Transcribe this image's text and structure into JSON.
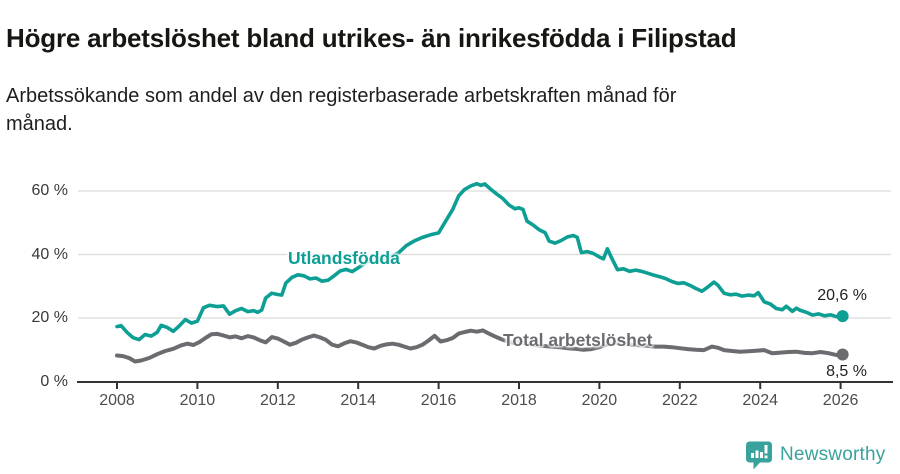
{
  "header": {
    "title": "Högre arbetslöshet bland utrikes- än inrikesfödda i Filipstad",
    "subtitle_line1": "Arbetssökande som andel av den registerbaserade arbetskraften månad för",
    "subtitle_line2": "månad."
  },
  "chart_data": {
    "type": "line",
    "title": "Högre arbetslöshet bland utrikes- än inrikesfödda i Filipstad",
    "subtitle": "Arbetssökande som andel av den registerbaserade arbetskraften månad för månad.",
    "xlabel": "",
    "ylabel": "",
    "xlim": [
      2007.2,
      2027.3
    ],
    "ylim": [
      0,
      65
    ],
    "grid": "horizontal",
    "x_ticks": [
      2008,
      2010,
      2012,
      2014,
      2016,
      2018,
      2020,
      2022,
      2024,
      2026
    ],
    "y_ticks": [
      {
        "value": 0,
        "label": "0 %"
      },
      {
        "value": 20,
        "label": "20 %"
      },
      {
        "value": 40,
        "label": "40 %"
      },
      {
        "value": 60,
        "label": "60 %"
      }
    ],
    "colors": {
      "grid": "#dcdcdc",
      "axis": "#333333",
      "tick_text": "#4d4d4d"
    },
    "series": [
      {
        "name": "Utlandsfödda",
        "color": "#0d9e94",
        "end_value": 20.6,
        "end_label": "20,6 %",
        "points": [
          [
            2008.0,
            17.3
          ],
          [
            2008.1,
            17.6
          ],
          [
            2008.25,
            15.5
          ],
          [
            2008.4,
            13.8
          ],
          [
            2008.55,
            13.2
          ],
          [
            2008.7,
            14.8
          ],
          [
            2008.85,
            14.3
          ],
          [
            2009.0,
            15.5
          ],
          [
            2009.1,
            17.7
          ],
          [
            2009.25,
            17.0
          ],
          [
            2009.4,
            15.8
          ],
          [
            2009.55,
            17.5
          ],
          [
            2009.7,
            19.5
          ],
          [
            2009.85,
            18.4
          ],
          [
            2010.0,
            19.0
          ],
          [
            2010.15,
            23.2
          ],
          [
            2010.3,
            24.0
          ],
          [
            2010.5,
            23.6
          ],
          [
            2010.65,
            23.8
          ],
          [
            2010.8,
            21.2
          ],
          [
            2010.95,
            22.3
          ],
          [
            2011.1,
            23.0
          ],
          [
            2011.25,
            22.0
          ],
          [
            2011.4,
            22.3
          ],
          [
            2011.5,
            21.8
          ],
          [
            2011.6,
            22.5
          ],
          [
            2011.7,
            26.3
          ],
          [
            2011.85,
            27.8
          ],
          [
            2012.0,
            27.4
          ],
          [
            2012.1,
            27.2
          ],
          [
            2012.2,
            31.0
          ],
          [
            2012.35,
            32.8
          ],
          [
            2012.5,
            33.6
          ],
          [
            2012.65,
            33.3
          ],
          [
            2012.8,
            32.3
          ],
          [
            2012.95,
            32.6
          ],
          [
            2013.1,
            31.6
          ],
          [
            2013.25,
            31.9
          ],
          [
            2013.4,
            33.3
          ],
          [
            2013.55,
            34.8
          ],
          [
            2013.7,
            35.3
          ],
          [
            2013.85,
            34.6
          ],
          [
            2014.0,
            35.8
          ],
          [
            2014.2,
            37.5
          ],
          [
            2014.4,
            38.6
          ],
          [
            2014.6,
            38.2
          ],
          [
            2014.8,
            39.4
          ],
          [
            2015.0,
            40.5
          ],
          [
            2015.2,
            42.8
          ],
          [
            2015.4,
            44.3
          ],
          [
            2015.6,
            45.4
          ],
          [
            2015.8,
            46.2
          ],
          [
            2016.0,
            46.8
          ],
          [
            2016.2,
            51.0
          ],
          [
            2016.35,
            54.2
          ],
          [
            2016.5,
            58.5
          ],
          [
            2016.65,
            60.5
          ],
          [
            2016.8,
            61.6
          ],
          [
            2016.95,
            62.3
          ],
          [
            2017.05,
            61.8
          ],
          [
            2017.15,
            62.2
          ],
          [
            2017.3,
            60.5
          ],
          [
            2017.45,
            59.0
          ],
          [
            2017.6,
            57.6
          ],
          [
            2017.75,
            55.6
          ],
          [
            2017.9,
            54.4
          ],
          [
            2018.0,
            54.7
          ],
          [
            2018.1,
            54.2
          ],
          [
            2018.2,
            50.5
          ],
          [
            2018.35,
            49.3
          ],
          [
            2018.5,
            47.8
          ],
          [
            2018.65,
            46.9
          ],
          [
            2018.75,
            44.2
          ],
          [
            2018.9,
            43.6
          ],
          [
            2019.05,
            44.4
          ],
          [
            2019.2,
            45.5
          ],
          [
            2019.35,
            46.0
          ],
          [
            2019.45,
            45.4
          ],
          [
            2019.55,
            40.6
          ],
          [
            2019.7,
            40.9
          ],
          [
            2019.85,
            40.3
          ],
          [
            2020.0,
            39.2
          ],
          [
            2020.1,
            38.6
          ],
          [
            2020.2,
            41.8
          ],
          [
            2020.3,
            39.0
          ],
          [
            2020.45,
            35.2
          ],
          [
            2020.6,
            35.5
          ],
          [
            2020.75,
            34.7
          ],
          [
            2020.9,
            35.1
          ],
          [
            2021.05,
            34.7
          ],
          [
            2021.2,
            34.1
          ],
          [
            2021.35,
            33.5
          ],
          [
            2021.5,
            33.0
          ],
          [
            2021.65,
            32.4
          ],
          [
            2021.8,
            31.5
          ],
          [
            2021.95,
            30.9
          ],
          [
            2022.1,
            31.1
          ],
          [
            2022.25,
            30.3
          ],
          [
            2022.4,
            29.3
          ],
          [
            2022.55,
            28.4
          ],
          [
            2022.7,
            29.8
          ],
          [
            2022.85,
            31.3
          ],
          [
            2022.95,
            30.3
          ],
          [
            2023.1,
            27.8
          ],
          [
            2023.25,
            27.3
          ],
          [
            2023.4,
            27.5
          ],
          [
            2023.55,
            26.9
          ],
          [
            2023.7,
            27.2
          ],
          [
            2023.85,
            27.0
          ],
          [
            2023.95,
            28.0
          ],
          [
            2024.1,
            25.1
          ],
          [
            2024.25,
            24.4
          ],
          [
            2024.4,
            23.0
          ],
          [
            2024.55,
            22.6
          ],
          [
            2024.65,
            23.7
          ],
          [
            2024.8,
            22.1
          ],
          [
            2024.9,
            23.1
          ],
          [
            2025.0,
            22.4
          ],
          [
            2025.15,
            21.8
          ],
          [
            2025.3,
            20.9
          ],
          [
            2025.45,
            21.3
          ],
          [
            2025.6,
            20.7
          ],
          [
            2025.75,
            21.0
          ],
          [
            2025.9,
            20.4
          ],
          [
            2026.05,
            20.6
          ]
        ]
      },
      {
        "name": "Total arbetslöshet",
        "color": "#6b6b70",
        "end_value": 8.5,
        "end_label": "8,5 %",
        "points": [
          [
            2008.0,
            8.2
          ],
          [
            2008.15,
            8.0
          ],
          [
            2008.3,
            7.4
          ],
          [
            2008.45,
            6.3
          ],
          [
            2008.6,
            6.6
          ],
          [
            2008.8,
            7.4
          ],
          [
            2009.0,
            8.6
          ],
          [
            2009.2,
            9.6
          ],
          [
            2009.4,
            10.3
          ],
          [
            2009.6,
            11.4
          ],
          [
            2009.75,
            11.9
          ],
          [
            2009.9,
            11.5
          ],
          [
            2010.05,
            12.4
          ],
          [
            2010.2,
            13.7
          ],
          [
            2010.35,
            14.9
          ],
          [
            2010.5,
            15.0
          ],
          [
            2010.65,
            14.5
          ],
          [
            2010.8,
            13.9
          ],
          [
            2010.95,
            14.2
          ],
          [
            2011.1,
            13.6
          ],
          [
            2011.25,
            14.3
          ],
          [
            2011.4,
            13.9
          ],
          [
            2011.55,
            13.0
          ],
          [
            2011.7,
            12.3
          ],
          [
            2011.85,
            14.0
          ],
          [
            2012.0,
            13.5
          ],
          [
            2012.15,
            12.6
          ],
          [
            2012.3,
            11.6
          ],
          [
            2012.45,
            12.2
          ],
          [
            2012.6,
            13.2
          ],
          [
            2012.75,
            13.9
          ],
          [
            2012.9,
            14.5
          ],
          [
            2013.05,
            13.9
          ],
          [
            2013.2,
            13.1
          ],
          [
            2013.35,
            11.6
          ],
          [
            2013.5,
            11.1
          ],
          [
            2013.65,
            12.0
          ],
          [
            2013.8,
            12.7
          ],
          [
            2013.95,
            12.3
          ],
          [
            2014.1,
            11.6
          ],
          [
            2014.25,
            10.8
          ],
          [
            2014.4,
            10.4
          ],
          [
            2014.55,
            11.2
          ],
          [
            2014.7,
            11.7
          ],
          [
            2014.85,
            11.9
          ],
          [
            2015.0,
            11.6
          ],
          [
            2015.15,
            11.0
          ],
          [
            2015.3,
            10.4
          ],
          [
            2015.45,
            10.8
          ],
          [
            2015.6,
            11.6
          ],
          [
            2015.75,
            12.9
          ],
          [
            2015.9,
            14.4
          ],
          [
            2016.05,
            12.6
          ],
          [
            2016.2,
            13.0
          ],
          [
            2016.35,
            13.7
          ],
          [
            2016.5,
            15.1
          ],
          [
            2016.65,
            15.6
          ],
          [
            2016.8,
            16.0
          ],
          [
            2016.95,
            15.7
          ],
          [
            2017.1,
            16.1
          ],
          [
            2017.25,
            15.1
          ],
          [
            2017.4,
            14.2
          ],
          [
            2017.55,
            13.4
          ],
          [
            2017.7,
            12.7
          ],
          [
            2017.85,
            12.2
          ],
          [
            2018.0,
            12.4
          ],
          [
            2018.2,
            12.0
          ],
          [
            2018.4,
            11.5
          ],
          [
            2018.6,
            11.2
          ],
          [
            2018.8,
            11.0
          ],
          [
            2019.0,
            10.8
          ],
          [
            2019.2,
            10.5
          ],
          [
            2019.4,
            10.3
          ],
          [
            2019.6,
            10.0
          ],
          [
            2019.8,
            10.2
          ],
          [
            2020.0,
            10.8
          ],
          [
            2020.2,
            11.8
          ],
          [
            2020.4,
            12.2
          ],
          [
            2020.6,
            11.9
          ],
          [
            2020.8,
            11.6
          ],
          [
            2021.0,
            11.4
          ],
          [
            2021.2,
            11.2
          ],
          [
            2021.4,
            11.0
          ],
          [
            2021.6,
            11.0
          ],
          [
            2021.8,
            10.8
          ],
          [
            2022.0,
            10.5
          ],
          [
            2022.2,
            10.2
          ],
          [
            2022.4,
            10.0
          ],
          [
            2022.6,
            9.9
          ],
          [
            2022.8,
            11.0
          ],
          [
            2022.95,
            10.6
          ],
          [
            2023.1,
            9.9
          ],
          [
            2023.3,
            9.6
          ],
          [
            2023.5,
            9.4
          ],
          [
            2023.7,
            9.5
          ],
          [
            2023.9,
            9.7
          ],
          [
            2024.1,
            9.9
          ],
          [
            2024.3,
            8.9
          ],
          [
            2024.5,
            9.1
          ],
          [
            2024.7,
            9.3
          ],
          [
            2024.9,
            9.4
          ],
          [
            2025.1,
            9.0
          ],
          [
            2025.3,
            8.9
          ],
          [
            2025.5,
            9.3
          ],
          [
            2025.7,
            8.9
          ],
          [
            2025.9,
            8.3
          ],
          [
            2026.05,
            8.5
          ]
        ]
      }
    ],
    "legend_position": "inline-labels"
  },
  "footer": {
    "brand": "Newsworthy",
    "brand_color": "#3aa29c",
    "logo_icon": "speech-bubble-bar-chart-icon"
  }
}
